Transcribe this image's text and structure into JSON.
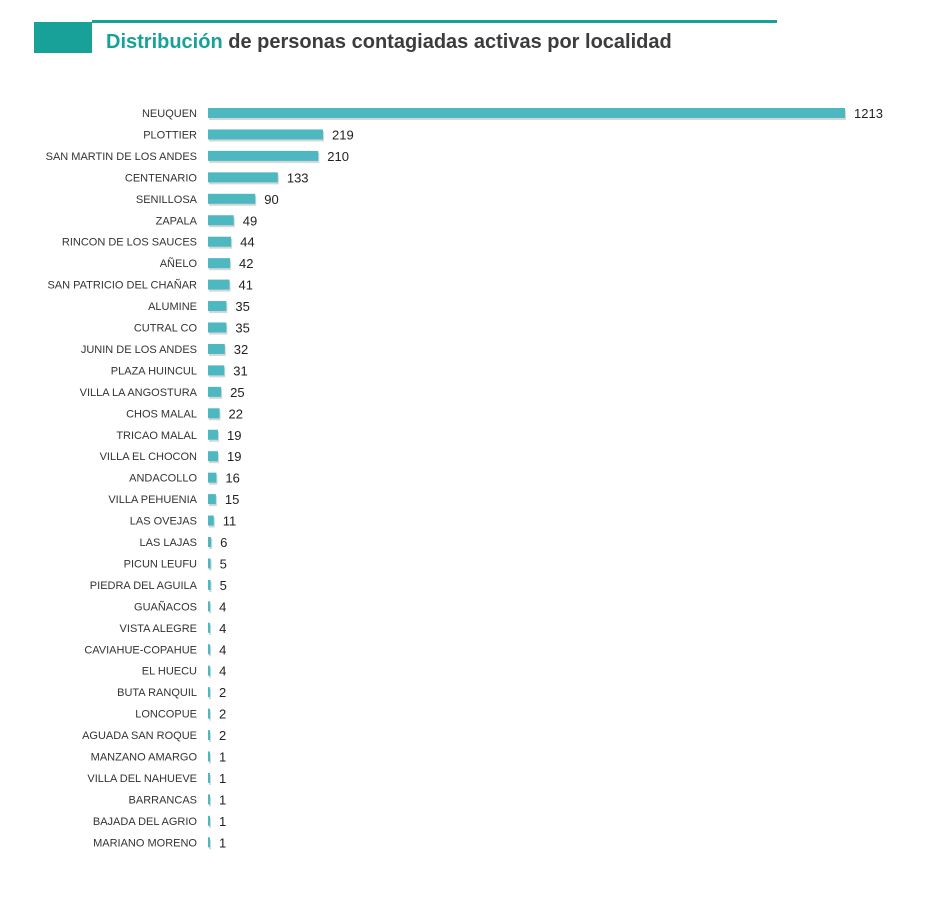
{
  "header": {
    "title_accent": "Distribución",
    "title_rest": " de personas contagiadas activas por localidad"
  },
  "colors": {
    "accent": "#17a199",
    "bar": "#4db8c0",
    "bar_shadow": "#7f8c8d"
  },
  "chart_data": {
    "type": "bar",
    "orientation": "horizontal",
    "title": "Distribución de personas contagiadas activas por localidad",
    "xlabel": "",
    "ylabel": "",
    "xlim": [
      0,
      1213
    ],
    "grid": false,
    "legend": "none",
    "data_labels": true,
    "categories": [
      "NEUQUEN",
      "PLOTTIER",
      "SAN MARTIN DE LOS ANDES",
      "CENTENARIO",
      "SENILLOSA",
      "ZAPALA",
      "RINCON DE LOS SAUCES",
      "AÑELO",
      "SAN PATRICIO DEL CHAÑAR",
      "ALUMINE",
      "CUTRAL CO",
      "JUNIN DE LOS ANDES",
      "PLAZA HUINCUL",
      "VILLA LA ANGOSTURA",
      "CHOS MALAL",
      "TRICAO MALAL",
      "VILLA EL CHOCON",
      "ANDACOLLO",
      "VILLA PEHUENIA",
      "LAS OVEJAS",
      "LAS LAJAS",
      "PICUN LEUFU",
      "PIEDRA DEL AGUILA",
      "GUAÑACOS",
      "VISTA ALEGRE",
      "CAVIAHUE-COPAHUE",
      "EL HUECU",
      "BUTA RANQUIL",
      "LONCOPUE",
      "AGUADA SAN ROQUE",
      "MANZANO AMARGO",
      "VILLA DEL NAHUEVE",
      "BARRANCAS",
      "BAJADA DEL AGRIO",
      "MARIANO MORENO"
    ],
    "values": [
      1213,
      219,
      210,
      133,
      90,
      49,
      44,
      42,
      41,
      35,
      35,
      32,
      31,
      25,
      22,
      19,
      19,
      16,
      15,
      11,
      6,
      5,
      5,
      4,
      4,
      4,
      4,
      2,
      2,
      2,
      1,
      1,
      1,
      1,
      1
    ]
  }
}
